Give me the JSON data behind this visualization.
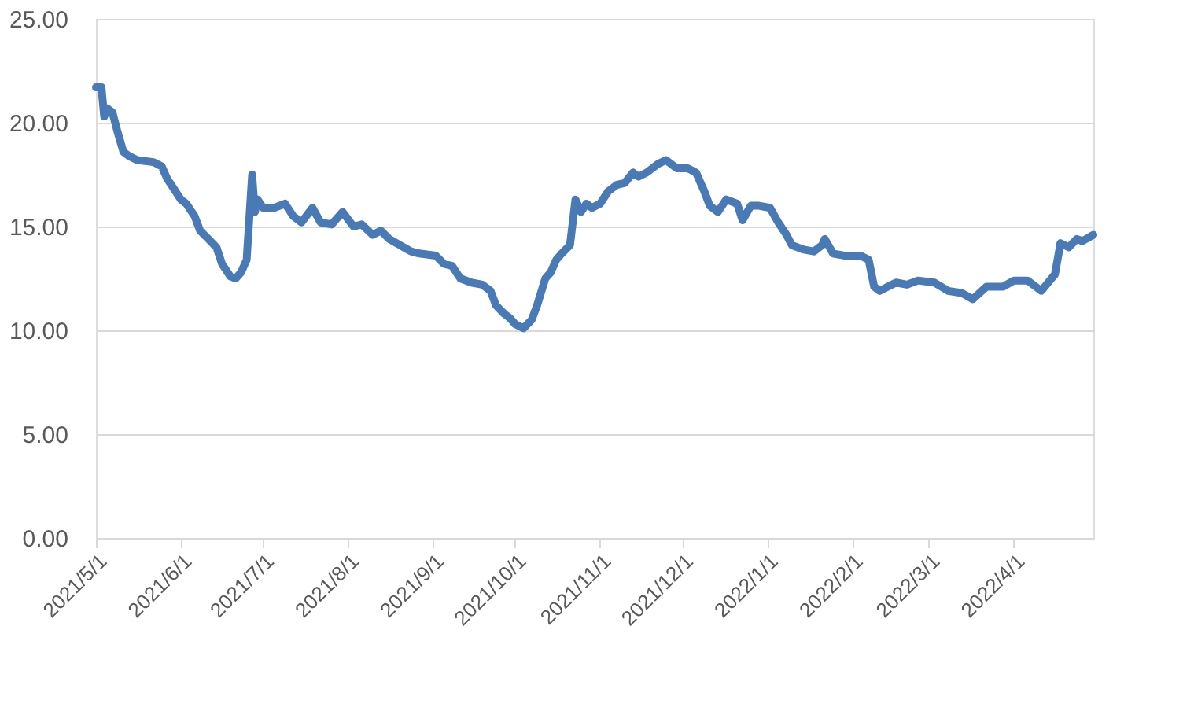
{
  "chart_data": {
    "type": "line",
    "x": [
      "2021-05-01",
      "2021-05-03",
      "2021-05-04",
      "2021-05-05",
      "2021-05-07",
      "2021-05-09",
      "2021-05-11",
      "2021-05-13",
      "2021-05-16",
      "2021-05-22",
      "2021-05-25",
      "2021-05-27",
      "2021-05-29",
      "2021-06-01",
      "2021-06-03",
      "2021-06-06",
      "2021-06-08",
      "2021-06-11",
      "2021-06-14",
      "2021-06-16",
      "2021-06-19",
      "2021-06-21",
      "2021-06-23",
      "2021-06-25",
      "2021-06-27",
      "2021-06-28",
      "2021-06-29",
      "2021-07-01",
      "2021-07-05",
      "2021-07-09",
      "2021-07-12",
      "2021-07-15",
      "2021-07-19",
      "2021-07-22",
      "2021-07-26",
      "2021-07-30",
      "2021-08-03",
      "2021-08-06",
      "2021-08-10",
      "2021-08-13",
      "2021-08-16",
      "2021-08-20",
      "2021-08-24",
      "2021-08-27",
      "2021-09-02",
      "2021-09-05",
      "2021-09-08",
      "2021-09-11",
      "2021-09-15",
      "2021-09-19",
      "2021-09-22",
      "2021-09-24",
      "2021-09-27",
      "2021-09-29",
      "2021-10-01",
      "2021-10-04",
      "2021-10-07",
      "2021-10-09",
      "2021-10-12",
      "2021-10-14",
      "2021-10-16",
      "2021-10-18",
      "2021-10-21",
      "2021-10-23",
      "2021-10-25",
      "2021-10-27",
      "2021-10-29",
      "2021-11-01",
      "2021-11-04",
      "2021-11-07",
      "2021-11-10",
      "2021-11-13",
      "2021-11-15",
      "2021-11-18",
      "2021-11-22",
      "2021-11-25",
      "2021-11-29",
      "2021-12-03",
      "2021-12-06",
      "2021-12-09",
      "2021-12-11",
      "2021-12-14",
      "2021-12-17",
      "2021-12-21",
      "2021-12-23",
      "2021-12-26",
      "2021-12-29",
      "2022-01-02",
      "2022-01-05",
      "2022-01-08",
      "2022-01-10",
      "2022-01-14",
      "2022-01-18",
      "2022-01-21",
      "2022-01-22",
      "2022-01-25",
      "2022-01-29",
      "2022-02-04",
      "2022-02-07",
      "2022-02-09",
      "2022-02-11",
      "2022-02-14",
      "2022-02-17",
      "2022-02-21",
      "2022-02-25",
      "2022-03-03",
      "2022-03-08",
      "2022-03-13",
      "2022-03-17",
      "2022-03-22",
      "2022-03-28",
      "2022-04-01",
      "2022-04-06",
      "2022-04-11",
      "2022-04-16",
      "2022-04-18",
      "2022-04-21",
      "2022-04-24",
      "2022-04-26",
      "2022-04-30"
    ],
    "series": [
      {
        "color": "#4a7ab5",
        "values": [
          21.7,
          21.7,
          20.3,
          20.7,
          20.5,
          19.5,
          18.6,
          18.4,
          18.2,
          18.1,
          17.9,
          17.3,
          16.9,
          16.3,
          16.1,
          15.5,
          14.8,
          14.4,
          14.0,
          13.2,
          12.6,
          12.5,
          12.8,
          13.4,
          17.5,
          15.7,
          16.3,
          15.9,
          15.9,
          16.1,
          15.5,
          15.2,
          15.9,
          15.2,
          15.1,
          15.7,
          15.0,
          15.1,
          14.6,
          14.8,
          14.4,
          14.1,
          13.8,
          13.7,
          13.6,
          13.2,
          13.1,
          12.5,
          12.3,
          12.2,
          11.9,
          11.2,
          10.8,
          10.6,
          10.3,
          10.1,
          10.5,
          11.2,
          12.5,
          12.8,
          13.4,
          13.7,
          14.1,
          16.3,
          15.7,
          16.1,
          15.9,
          16.1,
          16.7,
          17.0,
          17.1,
          17.6,
          17.4,
          17.6,
          18.0,
          18.2,
          17.8,
          17.8,
          17.6,
          16.7,
          16.0,
          15.7,
          16.3,
          16.1,
          15.3,
          16.0,
          16.0,
          15.9,
          15.2,
          14.6,
          14.1,
          13.9,
          13.8,
          14.1,
          14.4,
          13.7,
          13.6,
          13.6,
          13.4,
          12.1,
          11.9,
          12.1,
          12.3,
          12.2,
          12.4,
          12.3,
          11.9,
          11.8,
          11.5,
          12.1,
          12.1,
          12.4,
          12.4,
          11.9,
          12.7,
          14.2,
          14.0,
          14.4,
          14.3,
          14.6
        ]
      }
    ],
    "xlim": [
      "2021-05-01",
      "2022-04-30"
    ],
    "xticks": [
      {
        "value": "2021-05-01",
        "label": "2021/5/1"
      },
      {
        "value": "2021-06-01",
        "label": "2021/6/1"
      },
      {
        "value": "2021-07-01",
        "label": "2021/7/1"
      },
      {
        "value": "2021-08-01",
        "label": "2021/8/1"
      },
      {
        "value": "2021-09-01",
        "label": "2021/9/1"
      },
      {
        "value": "2021-10-01",
        "label": "2021/10/1"
      },
      {
        "value": "2021-11-01",
        "label": "2021/11/1"
      },
      {
        "value": "2021-12-01",
        "label": "2021/12/1"
      },
      {
        "value": "2022-01-01",
        "label": "2022/1/1"
      },
      {
        "value": "2022-02-01",
        "label": "2022/2/1"
      },
      {
        "value": "2022-03-01",
        "label": "2022/3/1"
      },
      {
        "value": "2022-04-01",
        "label": "2022/4/1"
      }
    ],
    "ylim": [
      0,
      25
    ],
    "yticks": [
      {
        "value": 0,
        "label": "0.00"
      },
      {
        "value": 5,
        "label": "5.00"
      },
      {
        "value": 10,
        "label": "10.00"
      },
      {
        "value": 15,
        "label": "15.00"
      },
      {
        "value": 20,
        "label": "20.00"
      },
      {
        "value": 25,
        "label": "25.00"
      }
    ],
    "grid": "y",
    "marker": "none",
    "line_style": "solid"
  }
}
